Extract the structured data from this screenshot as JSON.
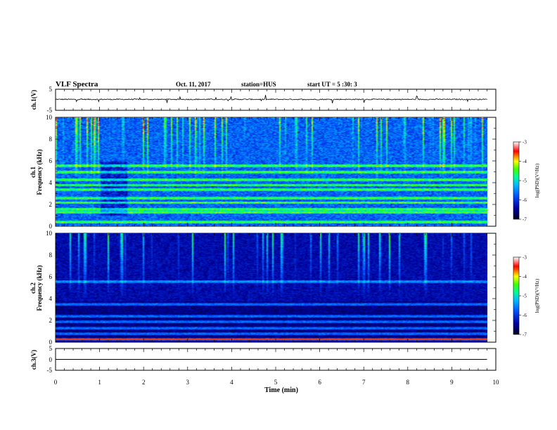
{
  "header": {
    "title": "VLF Spectra",
    "date": "Oct. 11, 2017",
    "station": "station=HUS",
    "start_ut": "start UT =  5 :30: 3"
  },
  "chart_data": [
    {
      "type": "line",
      "name": "ch1-waveform",
      "ylabel": "ch.1(V)",
      "ylim": [
        -5,
        5
      ],
      "yticks": [
        "5",
        "-5"
      ],
      "xlim": [
        0,
        10
      ],
      "x_end": 9.8,
      "baseline": 0.2,
      "noise_amplitude": 0.5
    },
    {
      "type": "heatmap",
      "name": "ch1-spectrogram",
      "ylabel": "ch.1\nFrequency  (kHz)",
      "ylim": [
        0,
        10
      ],
      "yticks": [
        "0",
        "2",
        "4",
        "6",
        "8",
        "10"
      ],
      "xlim": [
        0,
        10
      ],
      "x_end": 9.8,
      "colorbar": {
        "label": "log(PSD)(V²/Hz)",
        "range": [
          -7,
          -3
        ],
        "ticks": [
          "-3",
          "-4",
          "-5",
          "-6",
          "-7"
        ]
      },
      "bands_khz": [
        0.4,
        1.3,
        1.6,
        2.2,
        2.6,
        3.4,
        3.8,
        4.3,
        5.0,
        5.6
      ],
      "features": "bursty broadband emissions 4-10 kHz throughout; reduced activity 1.0-1.6 min"
    },
    {
      "type": "heatmap",
      "name": "ch2-spectrogram",
      "ylabel": "ch.2\nFrequency  (kHz)",
      "ylim": [
        0,
        10
      ],
      "yticks": [
        "0",
        "2",
        "4",
        "6",
        "8",
        "10"
      ],
      "xlim": [
        0,
        10
      ],
      "x_end": 9.8,
      "colorbar": {
        "label": "log(PSD)(V²/Hz)",
        "range": [
          -7,
          -3
        ],
        "ticks": [
          "-3",
          "-4",
          "-5",
          "-6",
          "-7"
        ]
      },
      "bands_khz": [
        0.3,
        0.8,
        1.3,
        1.9,
        2.4,
        3.5,
        5.6
      ],
      "features": "weaker background; vertical bursty emissions; strong line near 0.3 kHz"
    },
    {
      "type": "line",
      "name": "ch3-waveform",
      "ylabel": "ch.3(V)",
      "ylim": [
        -5,
        5
      ],
      "yticks": [
        "5",
        "0",
        "-5"
      ],
      "xlim": [
        0,
        10
      ],
      "x_end": 9.8,
      "baseline": 0.0,
      "noise_amplitude": 0.0
    }
  ],
  "x_axis": {
    "label": "Time  (min)",
    "ticks": [
      "0",
      "1",
      "2",
      "3",
      "4",
      "5",
      "6",
      "7",
      "8",
      "9",
      "10"
    ]
  },
  "colors": {
    "trace": "#000000",
    "background_spec": "#0a0a4a",
    "emission": "#20e080"
  }
}
